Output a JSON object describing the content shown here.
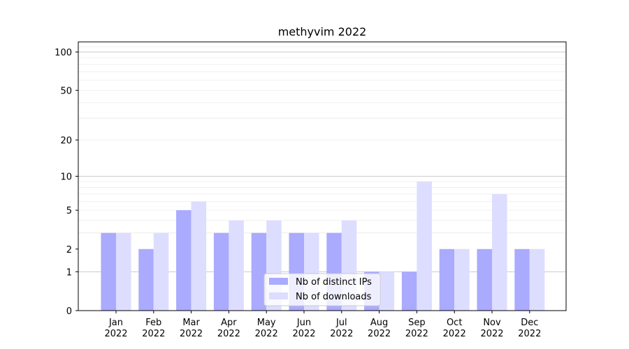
{
  "chart_data": {
    "type": "bar",
    "title": "methyvim 2022",
    "xlabel": "",
    "ylabel": "",
    "scale": "log1p",
    "ylim": [
      0,
      120
    ],
    "yticks": [
      0,
      1,
      2,
      5,
      10,
      20,
      50,
      100
    ],
    "ytick_labels": [
      "0",
      "1",
      "2",
      "5",
      "10",
      "20",
      "50",
      "100"
    ],
    "categories": [
      {
        "month": "Jan",
        "year": "2022"
      },
      {
        "month": "Feb",
        "year": "2022"
      },
      {
        "month": "Mar",
        "year": "2022"
      },
      {
        "month": "Apr",
        "year": "2022"
      },
      {
        "month": "May",
        "year": "2022"
      },
      {
        "month": "Jun",
        "year": "2022"
      },
      {
        "month": "Jul",
        "year": "2022"
      },
      {
        "month": "Aug",
        "year": "2022"
      },
      {
        "month": "Sep",
        "year": "2022"
      },
      {
        "month": "Oct",
        "year": "2022"
      },
      {
        "month": "Nov",
        "year": "2022"
      },
      {
        "month": "Dec",
        "year": "2022"
      }
    ],
    "series": [
      {
        "name": "Nb of distinct IPs",
        "color": "#aaaaff",
        "values": [
          3,
          2,
          5,
          3,
          3,
          3,
          3,
          1,
          1,
          2,
          2,
          2
        ]
      },
      {
        "name": "Nb of downloads",
        "color": "#ddddff",
        "values": [
          3,
          3,
          6,
          4,
          4,
          3,
          4,
          1,
          9,
          2,
          7,
          2
        ]
      }
    ],
    "grid": true,
    "legend_position": "bottom-center"
  }
}
